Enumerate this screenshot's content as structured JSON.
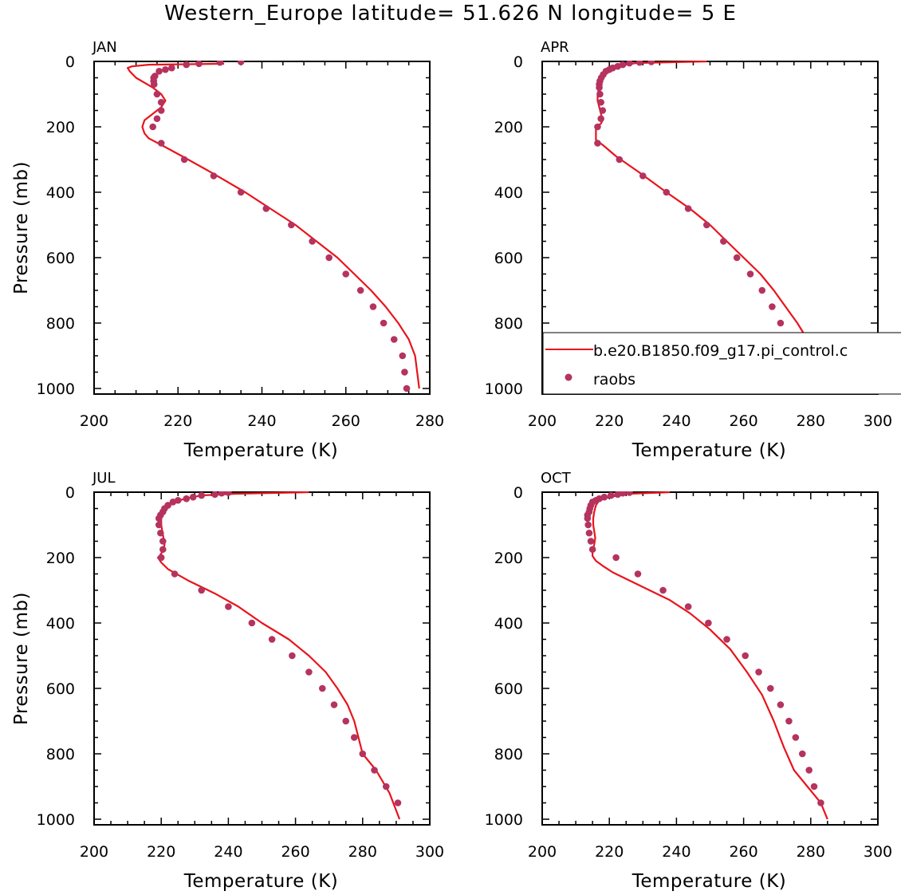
{
  "title": "Western_Europe  latitude= 51.626 N longitude= 5 E",
  "colors": {
    "model_line": "#e8141c",
    "obs_marker": "#b5335e",
    "axis": "#000000"
  },
  "legend": {
    "placement": "inside APR panel, lower-right, extending past the right edge",
    "model_label": "b.e20.B1850.f09_g17.pi_control.c",
    "obs_label": "raobs"
  },
  "chart_data": [
    {
      "type": "line",
      "panel_label": "JAN",
      "xlabel": "Temperature (K)",
      "ylabel": "Pressure (mb)",
      "xlim": [
        200,
        280
      ],
      "ylim": [
        0,
        1000
      ],
      "y_reversed": true,
      "xticks": [
        200,
        220,
        240,
        260,
        280
      ],
      "yticks": [
        0,
        200,
        400,
        600,
        800,
        1000
      ],
      "series": [
        {
          "kind": "line",
          "x": [
            231,
            213,
            209,
            208,
            208.5,
            210,
            214,
            216,
            217,
            216,
            214,
            212,
            211.5,
            212,
            213,
            216,
            221,
            228,
            236,
            242,
            248,
            253,
            258,
            262,
            266,
            269.5,
            272.5,
            275,
            276.5,
            277.5
          ],
          "y": [
            7,
            10,
            15,
            20,
            30,
            50,
            80,
            100,
            120,
            140,
            160,
            180,
            200,
            220,
            235,
            255,
            290,
            340,
            400,
            450,
            500,
            550,
            600,
            650,
            700,
            750,
            800,
            850,
            900,
            1000
          ]
        },
        {
          "kind": "scatter",
          "x": [
            235,
            230,
            225,
            222,
            218.5,
            217,
            215.5,
            214.5,
            214.2,
            214.2,
            214.3,
            215,
            216,
            216,
            215,
            214,
            216,
            221.5,
            228.5,
            235,
            241,
            247,
            252,
            256,
            260,
            263.5,
            266.5,
            269,
            271.5,
            273.5,
            274,
            274.5
          ],
          "y": [
            1,
            3,
            7,
            10,
            20,
            25,
            30,
            45,
            50,
            60,
            70,
            100,
            125,
            150,
            175,
            200,
            250,
            300,
            350,
            400,
            450,
            500,
            550,
            600,
            650,
            700,
            750,
            800,
            850,
            900,
            950,
            1000
          ]
        }
      ]
    },
    {
      "type": "line",
      "panel_label": "APR",
      "xlabel": "Temperature (K)",
      "ylabel": "",
      "xlim": [
        200,
        300
      ],
      "ylim": [
        0,
        1000
      ],
      "y_reversed": true,
      "xticks": [
        200,
        220,
        240,
        260,
        280,
        300
      ],
      "yticks": [
        0,
        200,
        400,
        600,
        800,
        1000
      ],
      "series": [
        {
          "kind": "line",
          "x": [
            249,
            228,
            222,
            219,
            218,
            217.5,
            217,
            216.5,
            216.5,
            217,
            217.5,
            218,
            217.5,
            216,
            216,
            216,
            218,
            222,
            229,
            237,
            244,
            250,
            255,
            260,
            265,
            269,
            272.5,
            276,
            279,
            283
          ],
          "y": [
            0,
            5,
            15,
            25,
            40,
            60,
            80,
            100,
            120,
            140,
            160,
            180,
            190,
            200,
            220,
            240,
            255,
            290,
            340,
            400,
            450,
            500,
            550,
            600,
            650,
            700,
            750,
            800,
            850,
            1000
          ]
        },
        {
          "kind": "scatter",
          "x": [
            232.5,
            229,
            226,
            224,
            222.5,
            221,
            220,
            219,
            218.2,
            217.6,
            217.2,
            217,
            217,
            217.2,
            217.5,
            218,
            217.5,
            216.5,
            216.5,
            223,
            230,
            237,
            243.5,
            249,
            254,
            258,
            262,
            265.5,
            268.5,
            271,
            273.5,
            276,
            280
          ],
          "y": [
            1,
            3,
            5,
            10,
            15,
            20,
            25,
            30,
            40,
            50,
            60,
            70,
            80,
            100,
            125,
            150,
            175,
            200,
            250,
            300,
            350,
            400,
            450,
            500,
            550,
            600,
            650,
            700,
            750,
            800,
            850,
            900,
            950
          ]
        }
      ]
    },
    {
      "type": "line",
      "panel_label": "JUL",
      "xlabel": "Temperature (K)",
      "ylabel": "Pressure (mb)",
      "xlim": [
        200,
        300
      ],
      "ylim": [
        0,
        1000
      ],
      "y_reversed": true,
      "xticks": [
        200,
        220,
        240,
        260,
        280,
        300
      ],
      "yticks": [
        0,
        200,
        400,
        600,
        800,
        1000
      ],
      "series": [
        {
          "kind": "line",
          "x": [
            264,
            242,
            232,
            227,
            224,
            222,
            221,
            220,
            220,
            220.5,
            221,
            220.5,
            219.5,
            219,
            220,
            222,
            228,
            236,
            243,
            250,
            258,
            264,
            269,
            272.5,
            275.5,
            277.5,
            280,
            284,
            288,
            291
          ],
          "y": [
            0,
            5,
            10,
            20,
            30,
            40,
            60,
            80,
            100,
            130,
            160,
            180,
            195,
            200,
            215,
            235,
            270,
            310,
            350,
            400,
            450,
            500,
            550,
            600,
            650,
            700,
            800,
            850,
            920,
            1000
          ]
        },
        {
          "kind": "scatter",
          "x": [
            240,
            238,
            236,
            232,
            229.5,
            227.5,
            225,
            223.5,
            222,
            221,
            220.5,
            219.8,
            219.3,
            219.3,
            219.8,
            220.5,
            220.5,
            220,
            224,
            232,
            240,
            247,
            253,
            259,
            264,
            268,
            271.5,
            275,
            277.5,
            280,
            283.5,
            287,
            290.5
          ],
          "y": [
            1,
            3,
            7,
            10,
            15,
            20,
            25,
            30,
            40,
            50,
            60,
            70,
            80,
            100,
            125,
            150,
            175,
            200,
            250,
            300,
            350,
            400,
            450,
            500,
            550,
            600,
            650,
            700,
            750,
            800,
            850,
            900,
            950
          ]
        }
      ]
    },
    {
      "type": "line",
      "panel_label": "OCT",
      "xlabel": "Temperature (K)",
      "ylabel": "",
      "xlim": [
        200,
        300
      ],
      "ylim": [
        0,
        1000
      ],
      "y_reversed": true,
      "xticks": [
        200,
        220,
        240,
        260,
        280,
        300
      ],
      "yticks": [
        0,
        200,
        400,
        600,
        800,
        1000
      ],
      "series": [
        {
          "kind": "line",
          "x": [
            238,
            226,
            220,
            217,
            216,
            215.5,
            215.2,
            215.2,
            215.5,
            215.8,
            215.5,
            215,
            215,
            216,
            218,
            221,
            226,
            232,
            238,
            244,
            250,
            256,
            261,
            265.5,
            269,
            272,
            275,
            279,
            283,
            285
          ],
          "y": [
            0,
            5,
            15,
            25,
            40,
            60,
            80,
            100,
            120,
            140,
            160,
            180,
            195,
            210,
            225,
            245,
            270,
            300,
            330,
            370,
            420,
            480,
            550,
            620,
            700,
            780,
            850,
            900,
            950,
            1000
          ]
        },
        {
          "kind": "scatter",
          "x": [
            226,
            224,
            222.5,
            220.5,
            218.5,
            217,
            216,
            215,
            214.5,
            214.2,
            214,
            213.5,
            213.5,
            213.7,
            214,
            214.5,
            215,
            222,
            228.5,
            236,
            243.5,
            249.5,
            255,
            260.5,
            264.5,
            268,
            271,
            273.5,
            275.5,
            277.5,
            279.5,
            281,
            283
          ],
          "y": [
            1,
            3,
            7,
            10,
            15,
            20,
            25,
            30,
            40,
            50,
            60,
            70,
            80,
            100,
            125,
            150,
            175,
            200,
            250,
            300,
            350,
            400,
            450,
            500,
            550,
            600,
            650,
            700,
            750,
            800,
            850,
            900,
            950
          ]
        }
      ]
    }
  ]
}
